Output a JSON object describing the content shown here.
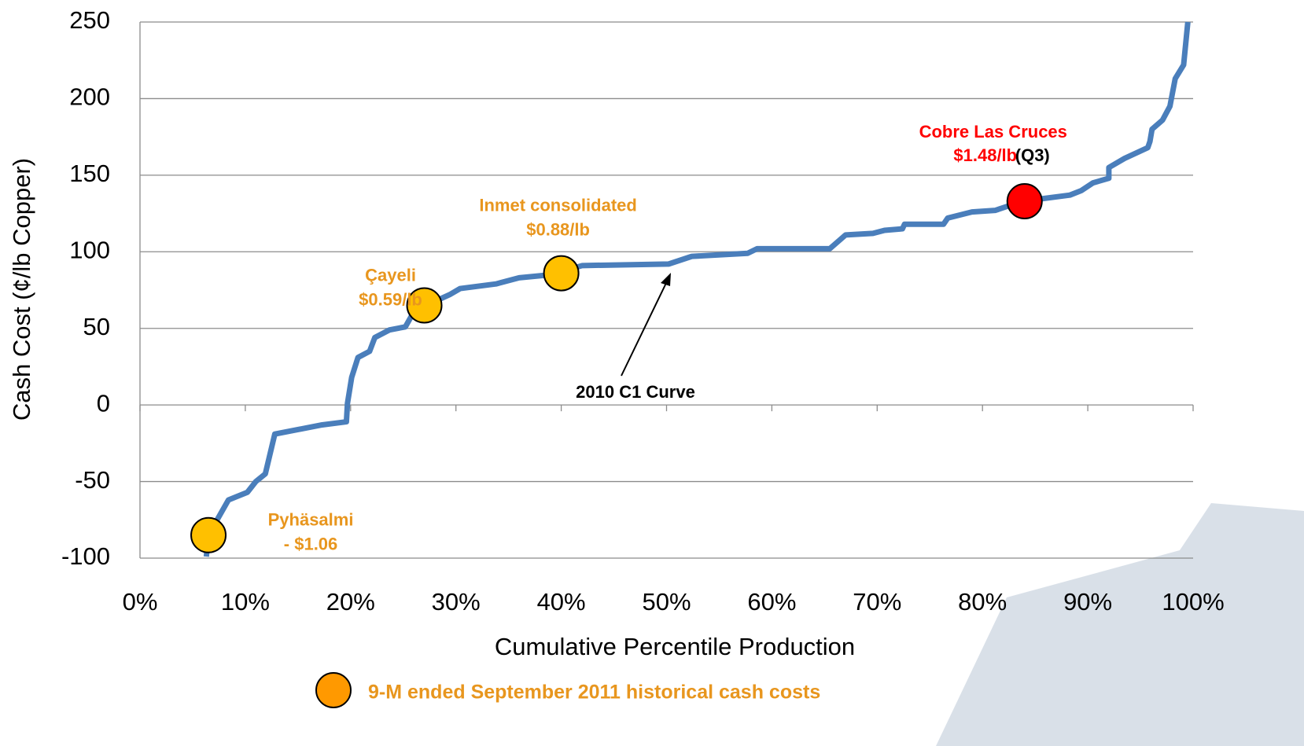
{
  "chart_data": {
    "type": "line",
    "xlabel": "Cumulative Percentile Production",
    "ylabel": "Cash Cost (¢/lb Copper)",
    "xlim": [
      0,
      100
    ],
    "ylim": [
      -100,
      250
    ],
    "xticks": [
      {
        "value": 0,
        "label": "0%"
      },
      {
        "value": 10,
        "label": "10%"
      },
      {
        "value": 20,
        "label": "20%"
      },
      {
        "value": 30,
        "label": "30%"
      },
      {
        "value": 40,
        "label": "40%"
      },
      {
        "value": 50,
        "label": "50%"
      },
      {
        "value": 60,
        "label": "60%"
      },
      {
        "value": 70,
        "label": "70%"
      },
      {
        "value": 80,
        "label": "80%"
      },
      {
        "value": 90,
        "label": "90%"
      },
      {
        "value": 100,
        "label": "100%"
      }
    ],
    "yticks": [
      -100,
      -50,
      0,
      50,
      100,
      150,
      200,
      250
    ],
    "grid": true,
    "series": [
      {
        "name": "2010 C1 Curve",
        "color": "#4a7ebb",
        "x": [
          6.3,
          6.5,
          8.4,
          10.2,
          11,
          11.9,
          12.8,
          17.3,
          19.6,
          19.7,
          20.1,
          20.7,
          21.8,
          22.3,
          23.7,
          25.2,
          26.1,
          27.8,
          29.4,
          30.4,
          33.8,
          36,
          39,
          42,
          50.2,
          52.4,
          57.7,
          58.6,
          65.5,
          67,
          69.6,
          70.7,
          72.4,
          72.6,
          76.3,
          76.7,
          79,
          81.2,
          83.8,
          88.3,
          89.4,
          90.5,
          92,
          92,
          93.5,
          95.7,
          95.9,
          96.1,
          97.1,
          97.8,
          98.3,
          99.1,
          99.5
        ],
        "y": [
          -99,
          -85,
          -62,
          -57,
          -50,
          -45,
          -19,
          -13,
          -11,
          1,
          18,
          31,
          35,
          44,
          49,
          51,
          62,
          67,
          72,
          76,
          79,
          83,
          85,
          91,
          92,
          97,
          99,
          102,
          102,
          111,
          112,
          114,
          115,
          118,
          118,
          122,
          126,
          127,
          133,
          137,
          140,
          145,
          148,
          155,
          161,
          168,
          172,
          180,
          186,
          195,
          213,
          222,
          250
        ]
      }
    ],
    "points": [
      {
        "x": 6.5,
        "y": -85,
        "color": "#ffc000",
        "labels": [
          {
            "text": "Pyhäsalmi",
            "color": "#e8961e"
          },
          {
            "text": "- $1.06",
            "color": "#e8961e"
          }
        ]
      },
      {
        "x": 27,
        "y": 65,
        "color": "#ffc000",
        "labels": [
          {
            "text": "Çayeli",
            "color": "#e8961e"
          },
          {
            "text": "$0.59/lb",
            "color": "#e8961e"
          }
        ]
      },
      {
        "x": 40,
        "y": 86,
        "color": "#ffc000",
        "labels": [
          {
            "text": "Inmet consolidated",
            "color": "#e8961e"
          },
          {
            "text": "$0.88/lb",
            "color": "#e8961e"
          }
        ]
      },
      {
        "x": 84,
        "y": 133,
        "color": "#ff0000",
        "labels": [
          {
            "text": "Cobre Las Cruces",
            "color": "#ff0000"
          },
          {
            "text": "$1.48/lb",
            "color": "#ff0000"
          },
          {
            "text": "(Q3)",
            "color": "#000000"
          }
        ]
      }
    ],
    "legend": {
      "label": "9-M ended September 2011 historical cash costs",
      "color": "#ff9900",
      "text_color": "#e8961e"
    }
  }
}
